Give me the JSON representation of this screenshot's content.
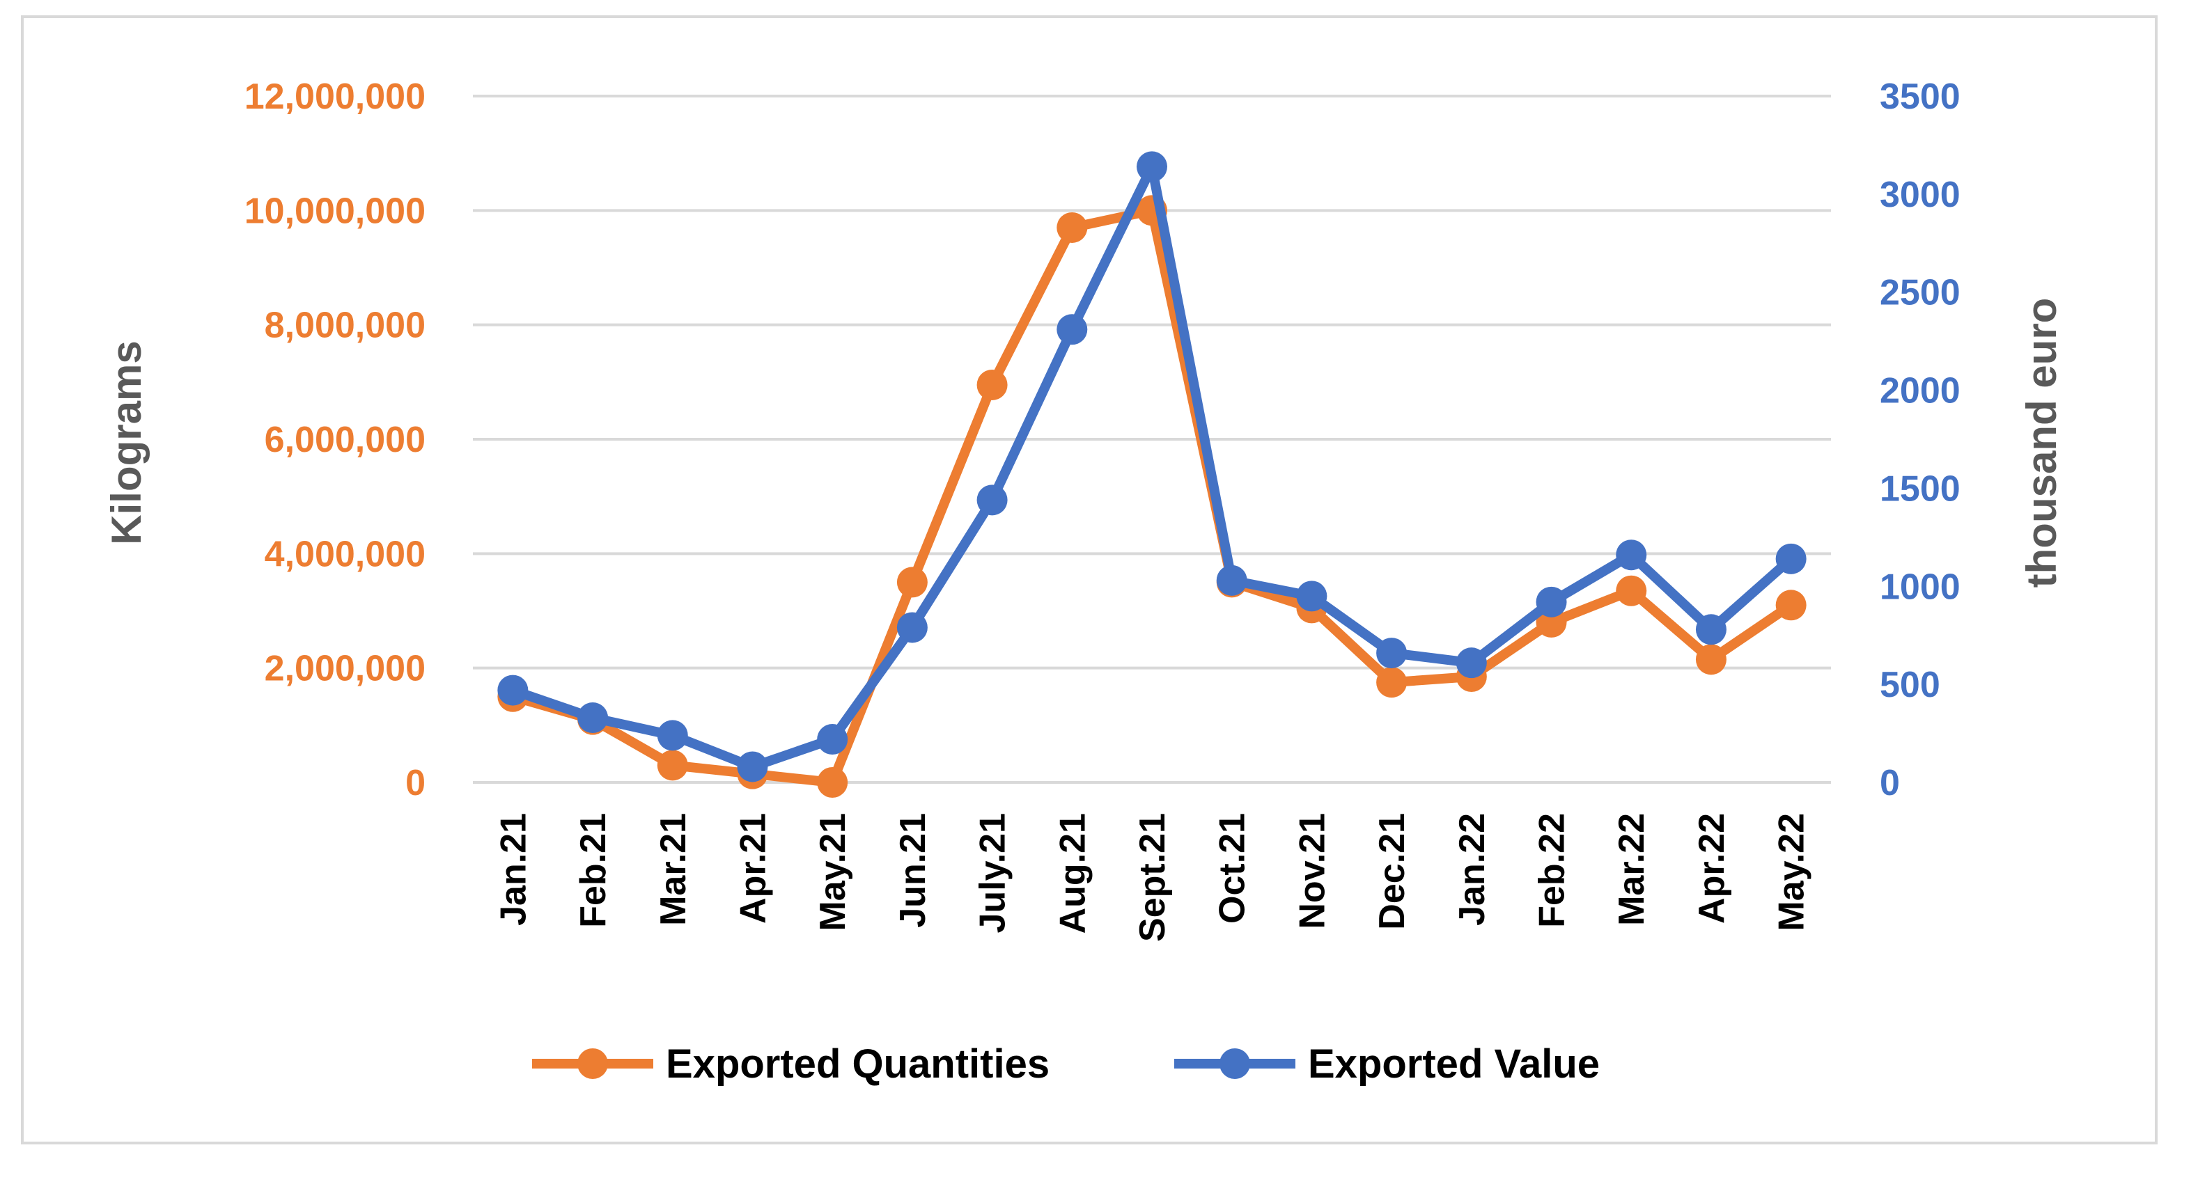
{
  "chart_data": {
    "type": "line",
    "title": "",
    "categories": [
      "Jan.21",
      "Feb.21",
      "Mar.21",
      "Apr.21",
      "May.21",
      "Jun.21",
      "July.21",
      "Aug.21",
      "Sept.21",
      "Oct.21",
      "Nov.21",
      "Dec.21",
      "Jan.22",
      "Feb.22",
      "Mar.22",
      "Apr.22",
      "May.22"
    ],
    "y_left": {
      "label": "Kilograms",
      "range": [
        0,
        12000000
      ],
      "ticks": [
        0,
        2000000,
        4000000,
        6000000,
        8000000,
        10000000,
        12000000
      ],
      "tick_labels": [
        "0",
        "2,000,000",
        "4,000,000",
        "6,000,000",
        "8,000,000",
        "10,000,000",
        "12,000,000"
      ],
      "color": "#ed7d31"
    },
    "y_right": {
      "label": "thousand euro",
      "range": [
        0,
        3500
      ],
      "ticks": [
        0,
        500,
        1000,
        1500,
        2000,
        2500,
        3000,
        3500
      ],
      "tick_labels": [
        "0",
        "500",
        "1000",
        "1500",
        "2000",
        "2500",
        "3000",
        "3500"
      ],
      "color": "#4472c4"
    },
    "series": [
      {
        "name": "Exported Quantities",
        "axis": "left",
        "color": "#ed7d31",
        "values": [
          1500000,
          1100000,
          300000,
          150000,
          0,
          3500000,
          6950000,
          9700000,
          10000000,
          3500000,
          3050000,
          1750000,
          1850000,
          2800000,
          3350000,
          2150000,
          3100000
        ]
      },
      {
        "name": "Exported Value",
        "axis": "right",
        "color": "#4472c4",
        "values": [
          470,
          330,
          240,
          80,
          220,
          790,
          1440,
          2310,
          3140,
          1030,
          950,
          660,
          610,
          920,
          1160,
          780,
          1140
        ]
      }
    ],
    "legend_position": "bottom",
    "grid": true
  }
}
